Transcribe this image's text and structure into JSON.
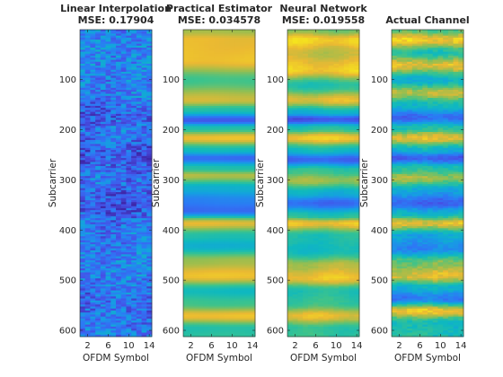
{
  "chart_data": [
    {
      "type": "heatmap",
      "title": "Linear Interpolation",
      "subtitle": "MSE: 0.17904",
      "xlabel": "OFDM Symbol",
      "ylabel": "Subcarrier",
      "xticks": [
        2,
        6,
        10,
        14
      ],
      "yticks": [
        100,
        200,
        300,
        400,
        500,
        600
      ],
      "xlim": [
        0.5,
        14.5
      ],
      "ylim": [
        0.5,
        612.5
      ],
      "colormap": "parula",
      "bands": [
        {
          "y": 0,
          "v": 0.28
        },
        {
          "y": 60,
          "v": 0.3
        },
        {
          "y": 120,
          "v": 0.27
        },
        {
          "y": 175,
          "v": 0.18
        },
        {
          "y": 200,
          "v": 0.25
        },
        {
          "y": 255,
          "v": 0.16
        },
        {
          "y": 300,
          "v": 0.24
        },
        {
          "y": 345,
          "v": 0.14
        },
        {
          "y": 400,
          "v": 0.26
        },
        {
          "y": 480,
          "v": 0.28
        },
        {
          "y": 540,
          "v": 0.22
        },
        {
          "y": 612,
          "v": 0.27
        }
      ],
      "noise": 0.32,
      "seed": 7
    },
    {
      "type": "heatmap",
      "title": "Practical Estimator",
      "subtitle": "MSE: 0.034578",
      "xlabel": "OFDM Symbol",
      "ylabel": "Subcarrier",
      "xticks": [
        2,
        6,
        10,
        14
      ],
      "yticks": [
        100,
        200,
        300,
        400,
        500,
        600
      ],
      "xlim": [
        0.5,
        14.5
      ],
      "ylim": [
        0.5,
        612.5
      ],
      "colormap": "parula",
      "bands": [
        {
          "y": 0,
          "v": 0.75
        },
        {
          "y": 20,
          "v": 0.86
        },
        {
          "y": 60,
          "v": 0.88
        },
        {
          "y": 100,
          "v": 0.62
        },
        {
          "y": 140,
          "v": 0.82
        },
        {
          "y": 160,
          "v": 0.55
        },
        {
          "y": 180,
          "v": 0.15
        },
        {
          "y": 195,
          "v": 0.55
        },
        {
          "y": 215,
          "v": 0.88
        },
        {
          "y": 240,
          "v": 0.5
        },
        {
          "y": 255,
          "v": 0.2
        },
        {
          "y": 275,
          "v": 0.55
        },
        {
          "y": 290,
          "v": 0.78
        },
        {
          "y": 315,
          "v": 0.45
        },
        {
          "y": 340,
          "v": 0.28
        },
        {
          "y": 360,
          "v": 0.2
        },
        {
          "y": 385,
          "v": 0.85
        },
        {
          "y": 410,
          "v": 0.55
        },
        {
          "y": 430,
          "v": 0.45
        },
        {
          "y": 460,
          "v": 0.75
        },
        {
          "y": 490,
          "v": 0.88
        },
        {
          "y": 520,
          "v": 0.5
        },
        {
          "y": 545,
          "v": 0.62
        },
        {
          "y": 570,
          "v": 0.88
        },
        {
          "y": 595,
          "v": 0.55
        },
        {
          "y": 612,
          "v": 0.58
        }
      ],
      "noise": 0.0,
      "seed": 3
    },
    {
      "type": "heatmap",
      "title": "Neural Network",
      "subtitle": "MSE: 0.019558",
      "xlabel": "OFDM Symbol",
      "ylabel": "Subcarrier",
      "xticks": [
        2,
        6,
        10,
        14
      ],
      "yticks": [
        100,
        200,
        300,
        400,
        500,
        600
      ],
      "xlim": [
        0.5,
        14.5
      ],
      "ylim": [
        0.5,
        612.5
      ],
      "colormap": "parula",
      "bands": [
        {
          "y": 0,
          "v": 0.7
        },
        {
          "y": 20,
          "v": 0.92
        },
        {
          "y": 45,
          "v": 0.8
        },
        {
          "y": 80,
          "v": 0.9
        },
        {
          "y": 110,
          "v": 0.55
        },
        {
          "y": 140,
          "v": 0.85
        },
        {
          "y": 165,
          "v": 0.45
        },
        {
          "y": 178,
          "v": 0.12
        },
        {
          "y": 195,
          "v": 0.55
        },
        {
          "y": 215,
          "v": 0.9
        },
        {
          "y": 240,
          "v": 0.5
        },
        {
          "y": 258,
          "v": 0.18
        },
        {
          "y": 280,
          "v": 0.6
        },
        {
          "y": 300,
          "v": 0.75
        },
        {
          "y": 325,
          "v": 0.45
        },
        {
          "y": 345,
          "v": 0.2
        },
        {
          "y": 370,
          "v": 0.55
        },
        {
          "y": 385,
          "v": 0.88
        },
        {
          "y": 410,
          "v": 0.55
        },
        {
          "y": 440,
          "v": 0.5
        },
        {
          "y": 470,
          "v": 0.78
        },
        {
          "y": 495,
          "v": 0.88
        },
        {
          "y": 520,
          "v": 0.55
        },
        {
          "y": 545,
          "v": 0.6
        },
        {
          "y": 570,
          "v": 0.86
        },
        {
          "y": 595,
          "v": 0.58
        },
        {
          "y": 612,
          "v": 0.6
        }
      ],
      "noise": 0.03,
      "seed": 11
    },
    {
      "type": "heatmap",
      "title": "Actual Channel",
      "xlabel": "OFDM Symbol",
      "ylabel": "Subcarrier",
      "xticks": [
        2,
        6,
        10,
        14
      ],
      "yticks": [
        100,
        200,
        300,
        400,
        500,
        600
      ],
      "xlim": [
        0.5,
        14.5
      ],
      "ylim": [
        0.5,
        612.5
      ],
      "colormap": "parula",
      "bands": [
        {
          "y": 0,
          "v": 0.65
        },
        {
          "y": 20,
          "v": 0.9
        },
        {
          "y": 45,
          "v": 0.55
        },
        {
          "y": 70,
          "v": 0.85
        },
        {
          "y": 100,
          "v": 0.45
        },
        {
          "y": 125,
          "v": 0.8
        },
        {
          "y": 150,
          "v": 0.5
        },
        {
          "y": 175,
          "v": 0.2
        },
        {
          "y": 195,
          "v": 0.55
        },
        {
          "y": 215,
          "v": 0.85
        },
        {
          "y": 240,
          "v": 0.45
        },
        {
          "y": 255,
          "v": 0.15
        },
        {
          "y": 275,
          "v": 0.55
        },
        {
          "y": 295,
          "v": 0.75
        },
        {
          "y": 320,
          "v": 0.4
        },
        {
          "y": 345,
          "v": 0.18
        },
        {
          "y": 365,
          "v": 0.45
        },
        {
          "y": 385,
          "v": 0.85
        },
        {
          "y": 410,
          "v": 0.4
        },
        {
          "y": 435,
          "v": 0.3
        },
        {
          "y": 465,
          "v": 0.7
        },
        {
          "y": 490,
          "v": 0.85
        },
        {
          "y": 515,
          "v": 0.45
        },
        {
          "y": 535,
          "v": 0.25
        },
        {
          "y": 560,
          "v": 0.88
        },
        {
          "y": 585,
          "v": 0.5
        },
        {
          "y": 612,
          "v": 0.55
        }
      ],
      "noise": 0.1,
      "seed": 19
    }
  ]
}
